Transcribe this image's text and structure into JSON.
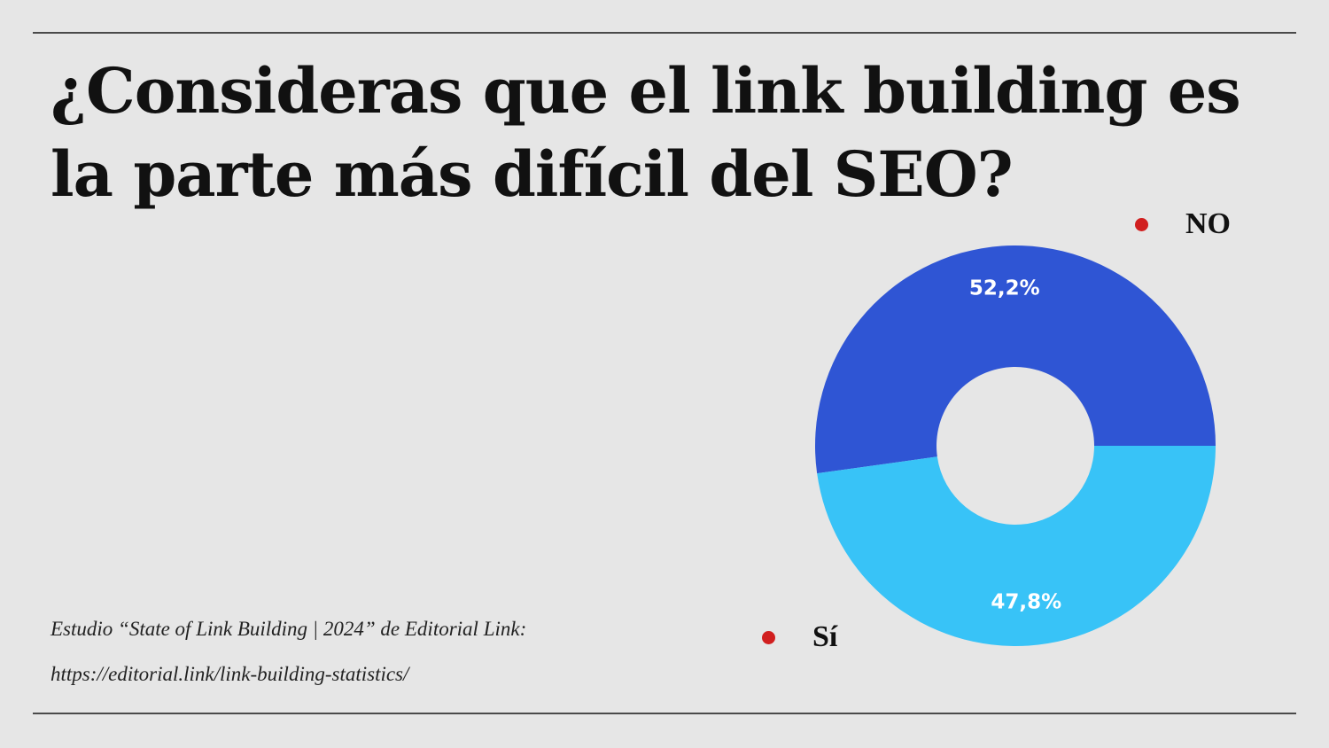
{
  "chart_data": {
    "type": "pie",
    "title": "¿Consideras que el link building es la parte más difícil del SEO?",
    "slices": [
      {
        "name": "NO",
        "value": 52.2,
        "label": "52,2%",
        "color": "#2f55d4"
      },
      {
        "name": "Sí",
        "value": 47.8,
        "label": "47,8%",
        "color": "#38c3f7"
      }
    ],
    "donut": true,
    "legend_marker_color": "#d11f1f"
  },
  "source": {
    "line1": "Estudio “State of Link Building | 2024” de Editorial Link:",
    "line2": "https://editorial.link/link-building-statistics/"
  }
}
